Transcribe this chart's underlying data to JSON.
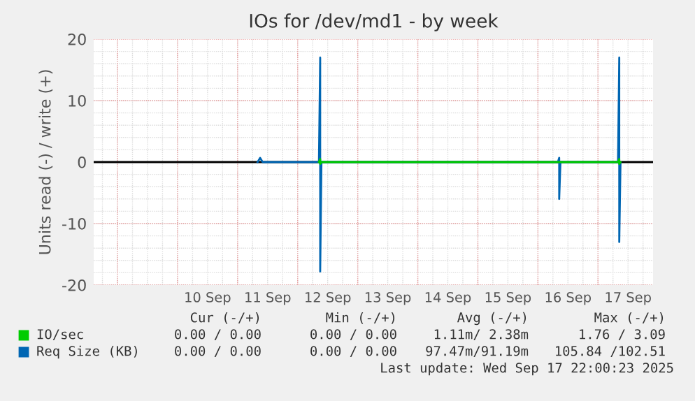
{
  "chart_data": {
    "type": "line",
    "title": "IOs for /dev/md1 - by week",
    "ylabel": "Units read (-) / write (+)",
    "series": [
      {
        "name": "IO/sec",
        "color": "#00cc00",
        "x": [
          "2025-09-12T08:30",
          "2025-09-12T09:00",
          "2025-09-12T09:00",
          "2025-09-12T09:30",
          "2025-09-17T08:00",
          "2025-09-17T08:30",
          "2025-09-17T08:30",
          "2025-09-17T09:00"
        ],
        "values": [
          0,
          0.5,
          -0.3,
          0,
          0,
          0.5,
          -0.3,
          0
        ]
      },
      {
        "name": "Req Size (KB)",
        "color": "#0066b3",
        "x": [
          "2025-09-11T08:00",
          "2025-09-11T09:00",
          "2025-09-11T10:00",
          "2025-09-12T08:30",
          "2025-09-12T09:00",
          "2025-09-12T09:00",
          "2025-09-12T09:30",
          "2025-09-16T08:00",
          "2025-09-16T08:30",
          "2025-09-16T08:30",
          "2025-09-16T09:00",
          "2025-09-17T08:00",
          "2025-09-17T08:30",
          "2025-09-17T08:30",
          "2025-09-17T09:00"
        ],
        "values": [
          0,
          0.7,
          0,
          0,
          17,
          -17.8,
          0,
          0,
          0.7,
          -6,
          0,
          0,
          17,
          -13,
          0
        ]
      }
    ],
    "xlim": [
      "2025-09-08T14:30",
      "2025-09-17T22:00"
    ],
    "xticks": [
      {
        "value": "2025-09-10T12:00",
        "label": "10 Sep"
      },
      {
        "value": "2025-09-11T12:00",
        "label": "11 Sep"
      },
      {
        "value": "2025-09-12T12:00",
        "label": "12 Sep"
      },
      {
        "value": "2025-09-13T12:00",
        "label": "13 Sep"
      },
      {
        "value": "2025-09-14T12:00",
        "label": "14 Sep"
      },
      {
        "value": "2025-09-15T12:00",
        "label": "15 Sep"
      },
      {
        "value": "2025-09-16T12:00",
        "label": "16 Sep"
      },
      {
        "value": "2025-09-17T12:00",
        "label": "17 Sep"
      }
    ],
    "ylim": [
      -20,
      20
    ],
    "yticks": [
      -20,
      -10,
      0,
      10,
      20
    ],
    "grid": true,
    "legend": "bottom",
    "ref_lines": [
      {
        "axis": "y",
        "value": 0,
        "color": "#000000"
      }
    ],
    "annotations": [
      "Cur (-/+)",
      "Min (-/+)",
      "Avg (-/+)",
      "Max (-/+)",
      "0.00 / 0.00",
      "0.00 / 0.00",
      "1.11m/ 2.38m",
      "1.76 / 3.09",
      "0.00 / 0.00",
      "0.00 / 0.00",
      "97.47m/91.19m",
      "105.84 /102.51",
      "Last update: Wed Sep 17 22:00:23 2025"
    ]
  }
}
